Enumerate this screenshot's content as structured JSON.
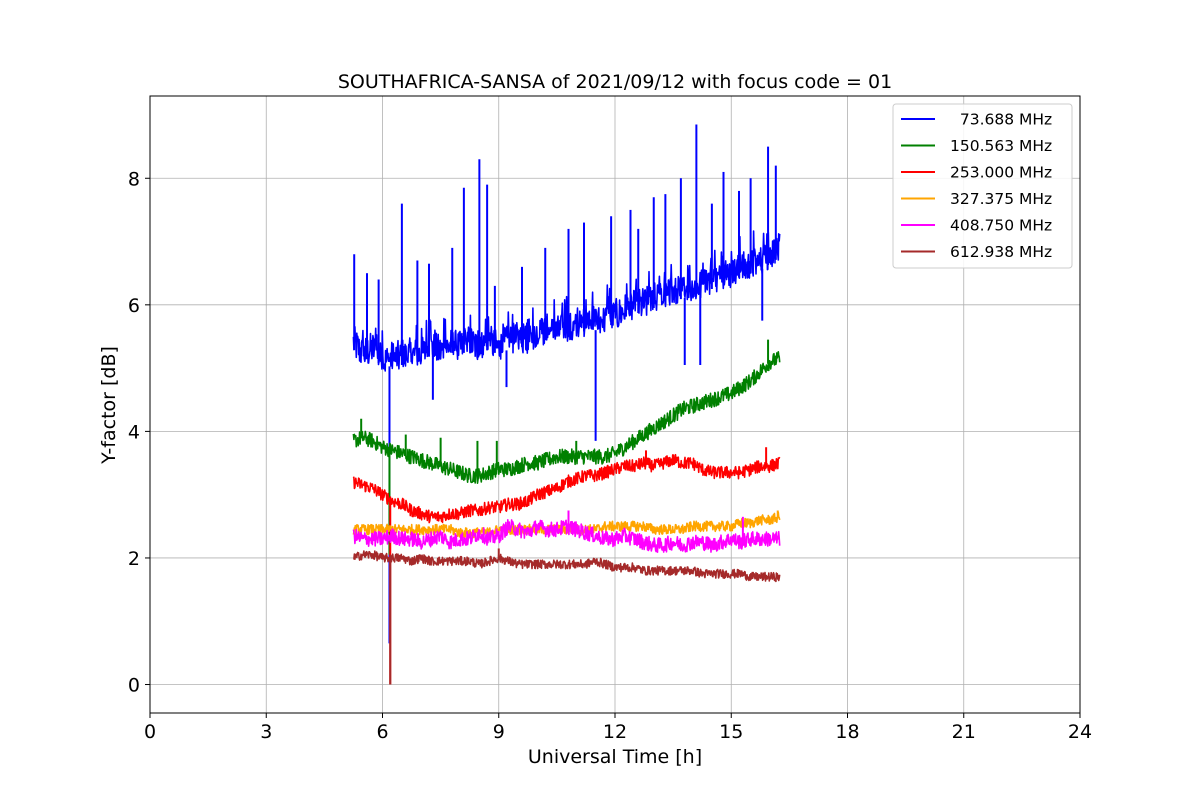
{
  "chart_data": {
    "type": "line",
    "title": "SOUTHAFRICA-SANSA of 2021/09/12 with focus code = 01",
    "xlabel": "Universal Time [h]",
    "ylabel": "Y-factor [dB]",
    "xlim": [
      0,
      24
    ],
    "ylim": [
      -0.45,
      9.3
    ],
    "xticks": [
      0,
      3,
      6,
      9,
      12,
      15,
      18,
      21,
      24
    ],
    "yticks": [
      0,
      2,
      4,
      6,
      8
    ],
    "grid": true,
    "legend_position": "top-right",
    "series": [
      {
        "name": "  73.688 MHz",
        "color": "#0000ff",
        "x": [
          5.25,
          5.5,
          5.75,
          6.0,
          6.1,
          6.25,
          6.5,
          6.75,
          7.0,
          7.25,
          7.5,
          7.75,
          8.0,
          8.25,
          8.5,
          8.75,
          9.0,
          9.25,
          9.5,
          9.75,
          10.0,
          10.25,
          10.5,
          10.75,
          11.0,
          11.25,
          11.5,
          11.75,
          12.0,
          12.25,
          12.5,
          12.75,
          13.0,
          13.25,
          13.5,
          13.75,
          14.0,
          14.25,
          14.5,
          14.75,
          15.0,
          15.25,
          15.5,
          15.75,
          16.0,
          16.25
        ],
        "y": [
          5.3,
          5.1,
          5.2,
          5.0,
          5.0,
          5.05,
          5.05,
          5.1,
          5.1,
          5.2,
          5.15,
          5.25,
          5.2,
          5.3,
          5.2,
          5.3,
          5.2,
          5.3,
          5.35,
          5.3,
          5.4,
          5.45,
          5.45,
          5.5,
          5.5,
          5.6,
          5.6,
          5.65,
          5.7,
          5.8,
          5.85,
          5.9,
          5.95,
          6.0,
          6.05,
          6.1,
          6.15,
          6.2,
          6.25,
          6.3,
          6.35,
          6.45,
          6.5,
          6.55,
          6.65,
          6.75
        ],
        "spikes": [
          [
            5.27,
            6.8
          ],
          [
            5.6,
            6.5
          ],
          [
            5.9,
            6.4
          ],
          [
            6.18,
            0.65
          ],
          [
            6.5,
            7.6
          ],
          [
            6.9,
            6.7
          ],
          [
            7.2,
            6.65
          ],
          [
            7.3,
            4.5
          ],
          [
            7.8,
            6.9
          ],
          [
            8.1,
            7.85
          ],
          [
            8.5,
            8.3
          ],
          [
            8.7,
            7.9
          ],
          [
            8.9,
            6.3
          ],
          [
            9.2,
            4.7
          ],
          [
            9.6,
            6.6
          ],
          [
            10.2,
            6.9
          ],
          [
            10.8,
            7.2
          ],
          [
            11.2,
            7.3
          ],
          [
            11.5,
            3.85
          ],
          [
            11.9,
            7.4
          ],
          [
            12.4,
            7.5
          ],
          [
            12.6,
            7.2
          ],
          [
            13.0,
            7.7
          ],
          [
            13.3,
            7.75
          ],
          [
            13.7,
            8.0
          ],
          [
            13.8,
            5.05
          ],
          [
            14.1,
            8.85
          ],
          [
            14.2,
            5.05
          ],
          [
            14.5,
            7.6
          ],
          [
            14.8,
            8.1
          ],
          [
            15.2,
            7.8
          ],
          [
            15.5,
            8.0
          ],
          [
            15.8,
            5.75
          ],
          [
            15.95,
            8.5
          ],
          [
            16.15,
            8.2
          ]
        ]
      },
      {
        "name": "150.563 MHz",
        "color": "#008000",
        "x": [
          5.25,
          5.5,
          5.75,
          6.0,
          6.25,
          6.5,
          6.75,
          7.0,
          7.25,
          7.5,
          7.75,
          8.0,
          8.25,
          8.5,
          8.75,
          9.0,
          9.25,
          9.5,
          9.75,
          10.0,
          10.25,
          10.5,
          10.75,
          11.0,
          11.25,
          11.5,
          11.75,
          12.0,
          12.25,
          12.5,
          12.75,
          13.0,
          13.25,
          13.5,
          13.75,
          14.0,
          14.25,
          14.5,
          14.75,
          15.0,
          15.25,
          15.5,
          15.75,
          16.0,
          16.25
        ],
        "y": [
          3.85,
          3.9,
          3.85,
          3.75,
          3.7,
          3.65,
          3.6,
          3.55,
          3.5,
          3.45,
          3.4,
          3.35,
          3.3,
          3.3,
          3.35,
          3.4,
          3.4,
          3.45,
          3.5,
          3.5,
          3.55,
          3.6,
          3.6,
          3.6,
          3.6,
          3.6,
          3.6,
          3.65,
          3.75,
          3.85,
          3.95,
          4.05,
          4.15,
          4.25,
          4.35,
          4.4,
          4.45,
          4.5,
          4.55,
          4.6,
          4.7,
          4.8,
          4.95,
          5.1,
          5.15
        ],
        "spikes": [
          [
            5.45,
            4.2
          ],
          [
            6.18,
            2.05
          ],
          [
            6.6,
            3.95
          ],
          [
            7.5,
            3.9
          ],
          [
            8.45,
            3.85
          ],
          [
            8.95,
            3.85
          ],
          [
            11.0,
            3.85
          ],
          [
            12.1,
            3.8
          ],
          [
            15.95,
            5.45
          ]
        ]
      },
      {
        "name": "253.000 MHz",
        "color": "#ff0000",
        "x": [
          5.25,
          5.5,
          5.75,
          6.0,
          6.25,
          6.5,
          6.75,
          7.0,
          7.25,
          7.5,
          7.75,
          8.0,
          8.25,
          8.5,
          8.75,
          9.0,
          9.25,
          9.5,
          9.75,
          10.0,
          10.25,
          10.5,
          10.75,
          11.0,
          11.25,
          11.5,
          11.75,
          12.0,
          12.25,
          12.5,
          12.75,
          13.0,
          13.25,
          13.5,
          13.75,
          14.0,
          14.25,
          14.5,
          14.75,
          15.0,
          15.25,
          15.5,
          15.75,
          16.0,
          16.25
        ],
        "y": [
          3.2,
          3.15,
          3.1,
          3.0,
          2.9,
          2.85,
          2.75,
          2.7,
          2.65,
          2.65,
          2.7,
          2.7,
          2.75,
          2.75,
          2.8,
          2.8,
          2.85,
          2.85,
          2.9,
          3.0,
          3.05,
          3.1,
          3.2,
          3.25,
          3.3,
          3.3,
          3.35,
          3.4,
          3.45,
          3.45,
          3.5,
          3.45,
          3.5,
          3.55,
          3.5,
          3.5,
          3.4,
          3.35,
          3.35,
          3.35,
          3.35,
          3.4,
          3.45,
          3.45,
          3.5
        ],
        "spikes": [
          [
            6.2,
            0.0
          ],
          [
            12.8,
            3.7
          ],
          [
            15.9,
            3.75
          ]
        ]
      },
      {
        "name": "327.375 MHz",
        "color": "#ffa500",
        "x": [
          5.25,
          5.5,
          5.75,
          6.0,
          6.25,
          6.5,
          6.75,
          7.0,
          7.25,
          7.5,
          7.75,
          8.0,
          8.25,
          8.5,
          8.75,
          9.0,
          9.25,
          9.5,
          9.75,
          10.0,
          10.25,
          10.5,
          10.75,
          11.0,
          11.25,
          11.5,
          11.75,
          12.0,
          12.25,
          12.5,
          12.75,
          13.0,
          13.25,
          13.5,
          13.75,
          14.0,
          14.25,
          14.5,
          14.75,
          15.0,
          15.25,
          15.5,
          15.75,
          16.0,
          16.25
        ],
        "y": [
          2.45,
          2.45,
          2.45,
          2.45,
          2.45,
          2.45,
          2.45,
          2.45,
          2.45,
          2.45,
          2.45,
          2.4,
          2.4,
          2.4,
          2.4,
          2.45,
          2.45,
          2.45,
          2.45,
          2.45,
          2.45,
          2.45,
          2.45,
          2.45,
          2.45,
          2.45,
          2.5,
          2.5,
          2.5,
          2.5,
          2.5,
          2.45,
          2.45,
          2.45,
          2.45,
          2.5,
          2.5,
          2.5,
          2.5,
          2.5,
          2.55,
          2.55,
          2.6,
          2.6,
          2.65
        ],
        "spikes": [
          [
            16.2,
            2.75
          ]
        ]
      },
      {
        "name": "408.750 MHz",
        "color": "#ff00ff",
        "x": [
          5.25,
          5.5,
          5.75,
          6.0,
          6.25,
          6.5,
          6.75,
          7.0,
          7.25,
          7.5,
          7.75,
          8.0,
          8.25,
          8.5,
          8.75,
          9.0,
          9.25,
          9.5,
          9.75,
          10.0,
          10.25,
          10.5,
          10.75,
          11.0,
          11.25,
          11.5,
          11.75,
          12.0,
          12.25,
          12.5,
          12.75,
          13.0,
          13.25,
          13.5,
          13.75,
          14.0,
          14.25,
          14.5,
          14.75,
          15.0,
          15.25,
          15.5,
          15.75,
          16.0,
          16.25
        ],
        "y": [
          2.35,
          2.3,
          2.3,
          2.3,
          2.35,
          2.3,
          2.3,
          2.25,
          2.3,
          2.35,
          2.25,
          2.3,
          2.3,
          2.4,
          2.3,
          2.35,
          2.5,
          2.45,
          2.4,
          2.5,
          2.45,
          2.45,
          2.5,
          2.45,
          2.4,
          2.35,
          2.3,
          2.3,
          2.35,
          2.3,
          2.25,
          2.2,
          2.2,
          2.25,
          2.2,
          2.25,
          2.25,
          2.2,
          2.25,
          2.3,
          2.25,
          2.3,
          2.3,
          2.3,
          2.3
        ],
        "spikes": [
          [
            10.8,
            2.75
          ],
          [
            15.3,
            2.65
          ]
        ]
      },
      {
        "name": "612.938 MHz",
        "color": "#a52a2a",
        "x": [
          5.25,
          5.5,
          5.75,
          6.0,
          6.25,
          6.5,
          6.75,
          7.0,
          7.25,
          7.5,
          7.75,
          8.0,
          8.25,
          8.5,
          8.75,
          9.0,
          9.25,
          9.5,
          9.75,
          10.0,
          10.25,
          10.5,
          10.75,
          11.0,
          11.25,
          11.5,
          11.75,
          12.0,
          12.25,
          12.5,
          12.75,
          13.0,
          13.25,
          13.5,
          13.75,
          14.0,
          14.25,
          14.5,
          14.75,
          15.0,
          15.25,
          15.5,
          15.75,
          16.0,
          16.25
        ],
        "y": [
          2.0,
          2.05,
          2.05,
          2.0,
          2.0,
          2.0,
          1.95,
          2.0,
          1.95,
          1.95,
          1.95,
          1.95,
          1.95,
          1.9,
          1.95,
          2.0,
          1.95,
          1.9,
          1.9,
          1.9,
          1.9,
          1.9,
          1.9,
          1.9,
          1.9,
          1.95,
          1.9,
          1.85,
          1.85,
          1.85,
          1.8,
          1.8,
          1.8,
          1.8,
          1.8,
          1.8,
          1.75,
          1.75,
          1.75,
          1.75,
          1.75,
          1.7,
          1.7,
          1.7,
          1.7
        ],
        "spikes": [
          [
            6.2,
            0.0
          ],
          [
            9.0,
            2.15
          ]
        ]
      }
    ]
  }
}
